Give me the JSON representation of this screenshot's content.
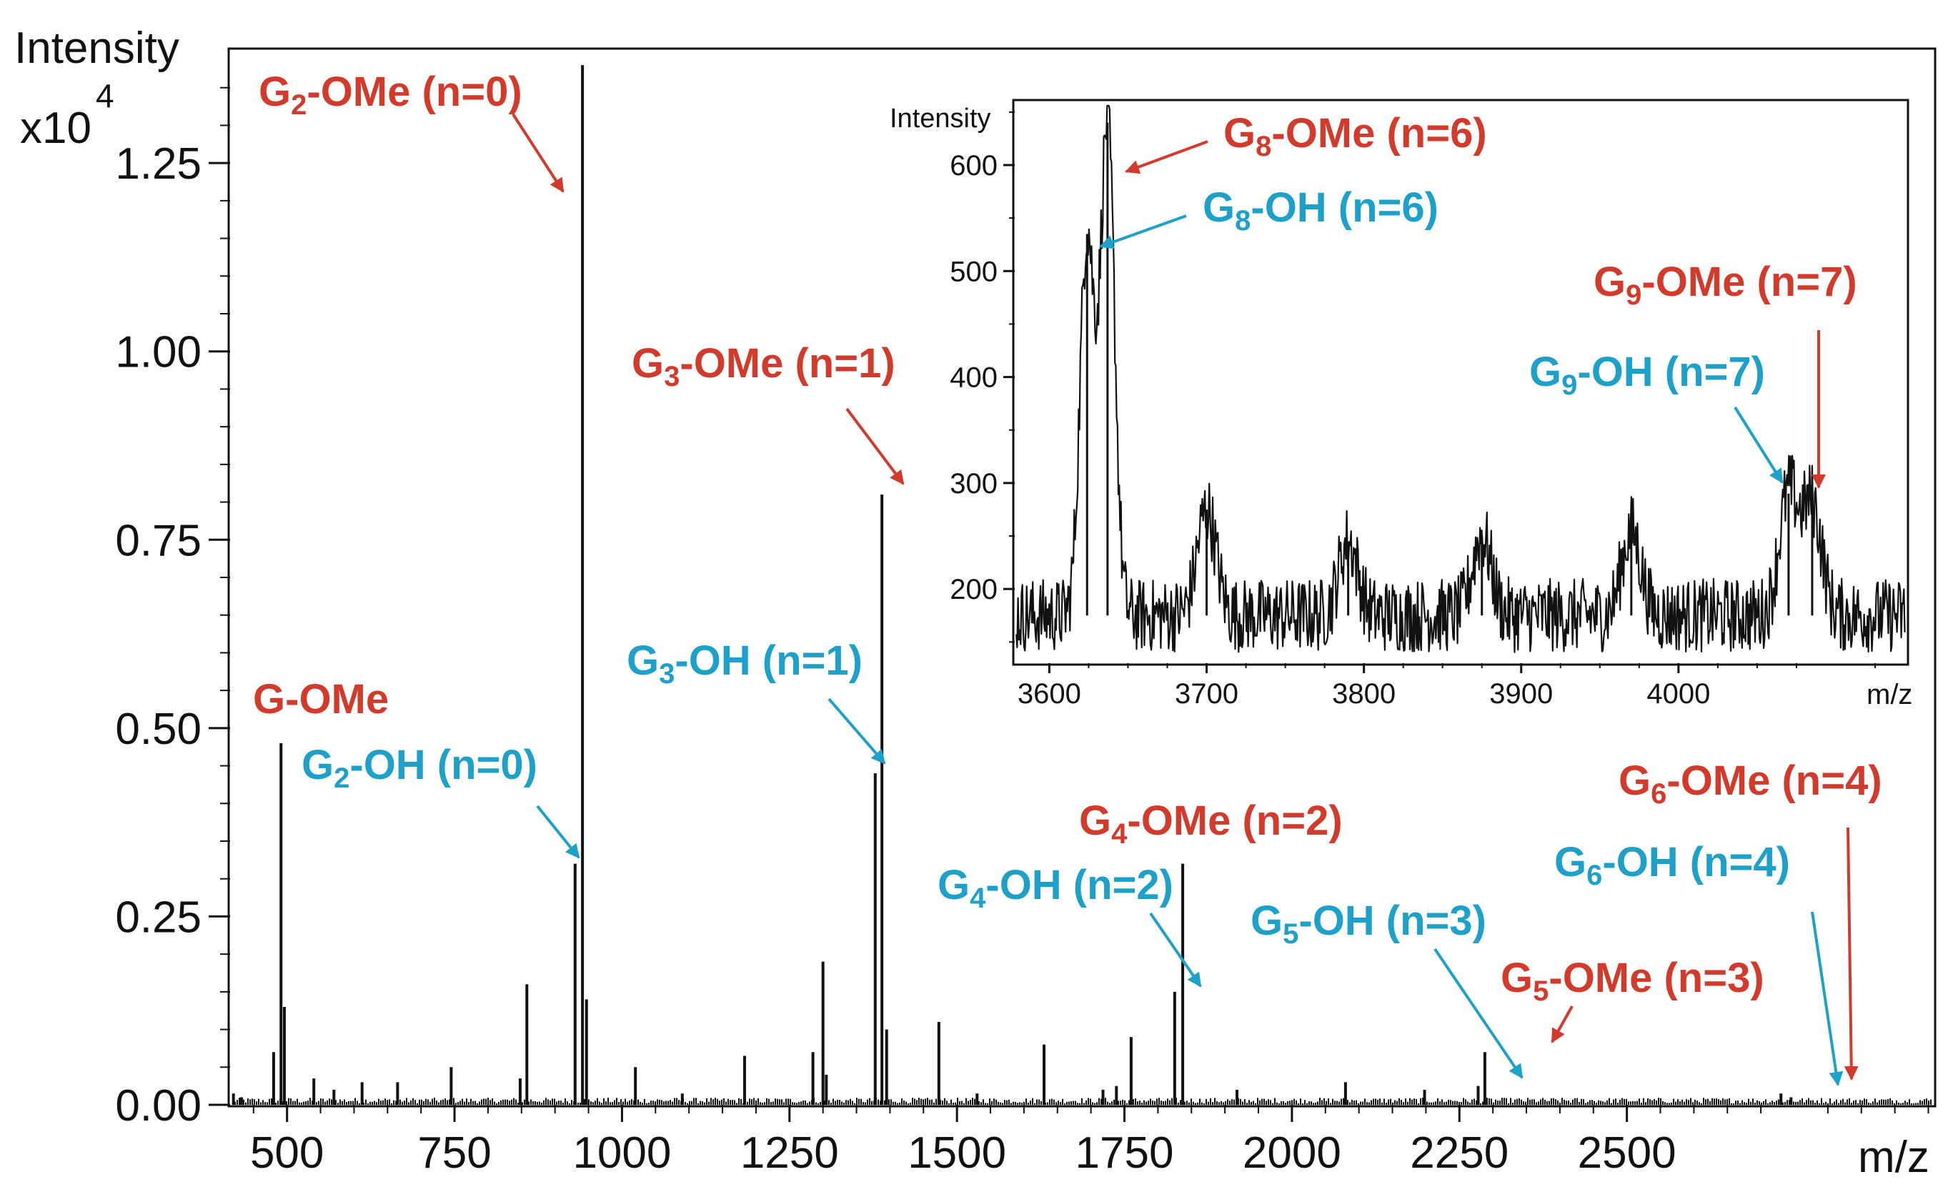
{
  "colors": {
    "ome": "#d23a2b",
    "oh": "#1ea1c9",
    "ink": "#111111"
  },
  "chart_data": [
    {
      "type": "line",
      "subtype": "mass-spectrum",
      "ylabel": "Intensity",
      "ylabel_scale_base": "x10",
      "ylabel_scale_exp": "4",
      "xlabel": "m/z",
      "xlim": [
        415,
        2958
      ],
      "ylim": [
        0,
        1.4
      ],
      "xticks": [
        "500",
        "750",
        "1000",
        "1250",
        "1500",
        "1750",
        "2000",
        "2250",
        "2500"
      ],
      "yticks": [
        "0.00",
        "0.25",
        "0.50",
        "0.75",
        "1.00",
        "1.25"
      ],
      "peaks": [
        {
          "x": 420,
          "y": 0.015
        },
        {
          "x": 432,
          "y": 0.01
        },
        {
          "x": 480,
          "y": 0.07
        },
        {
          "x": 491,
          "y": 0.48
        },
        {
          "x": 496,
          "y": 0.13
        },
        {
          "x": 540,
          "y": 0.035
        },
        {
          "x": 570,
          "y": 0.02
        },
        {
          "x": 612,
          "y": 0.03
        },
        {
          "x": 665,
          "y": 0.03
        },
        {
          "x": 745,
          "y": 0.05
        },
        {
          "x": 848,
          "y": 0.035
        },
        {
          "x": 858,
          "y": 0.16
        },
        {
          "x": 930,
          "y": 0.32
        },
        {
          "x": 941,
          "y": 1.38
        },
        {
          "x": 947,
          "y": 0.14
        },
        {
          "x": 1020,
          "y": 0.05
        },
        {
          "x": 1090,
          "y": 0.015
        },
        {
          "x": 1183,
          "y": 0.065
        },
        {
          "x": 1285,
          "y": 0.07
        },
        {
          "x": 1300,
          "y": 0.19
        },
        {
          "x": 1305,
          "y": 0.04
        },
        {
          "x": 1378,
          "y": 0.44
        },
        {
          "x": 1388,
          "y": 0.81
        },
        {
          "x": 1395,
          "y": 0.1
        },
        {
          "x": 1473,
          "y": 0.11
        },
        {
          "x": 1530,
          "y": 0.015
        },
        {
          "x": 1630,
          "y": 0.08
        },
        {
          "x": 1718,
          "y": 0.02
        },
        {
          "x": 1738,
          "y": 0.025
        },
        {
          "x": 1760,
          "y": 0.09
        },
        {
          "x": 1825,
          "y": 0.15
        },
        {
          "x": 1837,
          "y": 0.32
        },
        {
          "x": 1918,
          "y": 0.02
        },
        {
          "x": 2080,
          "y": 0.03
        },
        {
          "x": 2198,
          "y": 0.02
        },
        {
          "x": 2278,
          "y": 0.025
        },
        {
          "x": 2288,
          "y": 0.07
        },
        {
          "x": 2730,
          "y": 0.015
        },
        {
          "x": 2745,
          "y": 0.01
        }
      ],
      "annotations": [
        {
          "species": "G-OMe",
          "sub": "",
          "name": "G",
          "suffix": "-OMe",
          "n": "",
          "kind": "ome"
        },
        {
          "species": "G2-OMe (n=0)",
          "name": "G",
          "sub": "2",
          "suffix": "-OMe (n=0)",
          "kind": "ome"
        },
        {
          "species": "G2-OH (n=0)",
          "name": "G",
          "sub": "2",
          "suffix": "-OH (n=0)",
          "kind": "oh"
        },
        {
          "species": "G3-OMe (n=1)",
          "name": "G",
          "sub": "3",
          "suffix": "-OMe (n=1)",
          "kind": "ome"
        },
        {
          "species": "G3-OH (n=1)",
          "name": "G",
          "sub": "3",
          "suffix": "-OH (n=1)",
          "kind": "oh"
        },
        {
          "species": "G4-OMe (n=2)",
          "name": "G",
          "sub": "4",
          "suffix": "-OMe (n=2)",
          "kind": "ome"
        },
        {
          "species": "G4-OH (n=2)",
          "name": "G",
          "sub": "4",
          "suffix": "-OH (n=2)",
          "kind": "oh"
        },
        {
          "species": "G5-OH (n=3)",
          "name": "G",
          "sub": "5",
          "suffix": "-OH (n=3)",
          "kind": "oh"
        },
        {
          "species": "G5-OMe (n=3)",
          "name": "G",
          "sub": "5",
          "suffix": "-OMe (n=3)",
          "kind": "ome"
        },
        {
          "species": "G6-OMe (n=4)",
          "name": "G",
          "sub": "6",
          "suffix": "-OMe (n=4)",
          "kind": "ome"
        },
        {
          "species": "G6-OH (n=4)",
          "name": "G",
          "sub": "6",
          "suffix": "-OH (n=4)",
          "kind": "oh"
        }
      ]
    },
    {
      "type": "line",
      "subtype": "mass-spectrum-inset",
      "ylabel": "Intensity",
      "xlabel": "m/z",
      "xlim": [
        3578,
        4145
      ],
      "ylim": [
        130,
        660
      ],
      "xticks": [
        "3600",
        "3700",
        "3800",
        "3900",
        "4000"
      ],
      "yticks": [
        "200",
        "300",
        "400",
        "500",
        "600"
      ],
      "baseline": 175,
      "peaks": [
        {
          "x": 3624,
          "y": 535
        },
        {
          "x": 3637,
          "y": 640
        },
        {
          "x": 3700,
          "y": 275
        },
        {
          "x": 3790,
          "y": 245
        },
        {
          "x": 3875,
          "y": 250
        },
        {
          "x": 3970,
          "y": 255
        },
        {
          "x": 4070,
          "y": 290
        },
        {
          "x": 4085,
          "y": 280
        }
      ],
      "annotations": [
        {
          "species": "G8-OMe (n=6)",
          "name": "G",
          "sub": "8",
          "suffix": "-OMe (n=6)",
          "kind": "ome"
        },
        {
          "species": "G8-OH (n=6)",
          "name": "G",
          "sub": "8",
          "suffix": "-OH (n=6)",
          "kind": "oh"
        },
        {
          "species": "G9-OMe (n=7)",
          "name": "G",
          "sub": "9",
          "suffix": "-OMe (n=7)",
          "kind": "ome"
        },
        {
          "species": "G9-OH (n=7)",
          "name": "G",
          "sub": "9",
          "suffix": "-OH (n=7)",
          "kind": "oh"
        }
      ]
    }
  ]
}
